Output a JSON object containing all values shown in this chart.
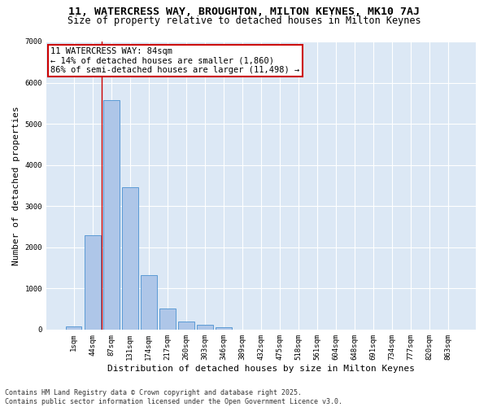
{
  "title_line1": "11, WATERCRESS WAY, BROUGHTON, MILTON KEYNES, MK10 7AJ",
  "title_line2": "Size of property relative to detached houses in Milton Keynes",
  "xlabel": "Distribution of detached houses by size in Milton Keynes",
  "ylabel": "Number of detached properties",
  "categories": [
    "1sqm",
    "44sqm",
    "87sqm",
    "131sqm",
    "174sqm",
    "217sqm",
    "260sqm",
    "303sqm",
    "346sqm",
    "389sqm",
    "432sqm",
    "475sqm",
    "518sqm",
    "561sqm",
    "604sqm",
    "648sqm",
    "691sqm",
    "734sqm",
    "777sqm",
    "820sqm",
    "863sqm"
  ],
  "values": [
    70,
    2290,
    5580,
    3450,
    1320,
    510,
    195,
    120,
    60,
    0,
    0,
    0,
    0,
    0,
    0,
    0,
    0,
    0,
    0,
    0,
    0
  ],
  "bar_color": "#aec6e8",
  "bar_edge_color": "#5b9bd5",
  "vline_color": "#cc0000",
  "vline_x_index": 1.5,
  "annotation_text": "11 WATERCRESS WAY: 84sqm\n← 14% of detached houses are smaller (1,860)\n86% of semi-detached houses are larger (11,498) →",
  "annotation_box_color": "#ffffff",
  "annotation_box_edge": "#cc0000",
  "ylim": [
    0,
    7000
  ],
  "yticks": [
    0,
    1000,
    2000,
    3000,
    4000,
    5000,
    6000,
    7000
  ],
  "background_color": "#dce8f5",
  "grid_color": "#ffffff",
  "fig_facecolor": "#ffffff",
  "footer_text": "Contains HM Land Registry data © Crown copyright and database right 2025.\nContains public sector information licensed under the Open Government Licence v3.0.",
  "title_fontsize": 9.5,
  "subtitle_fontsize": 8.5,
  "axis_label_fontsize": 8,
  "tick_fontsize": 6.5,
  "annotation_fontsize": 7.5,
  "footer_fontsize": 6
}
